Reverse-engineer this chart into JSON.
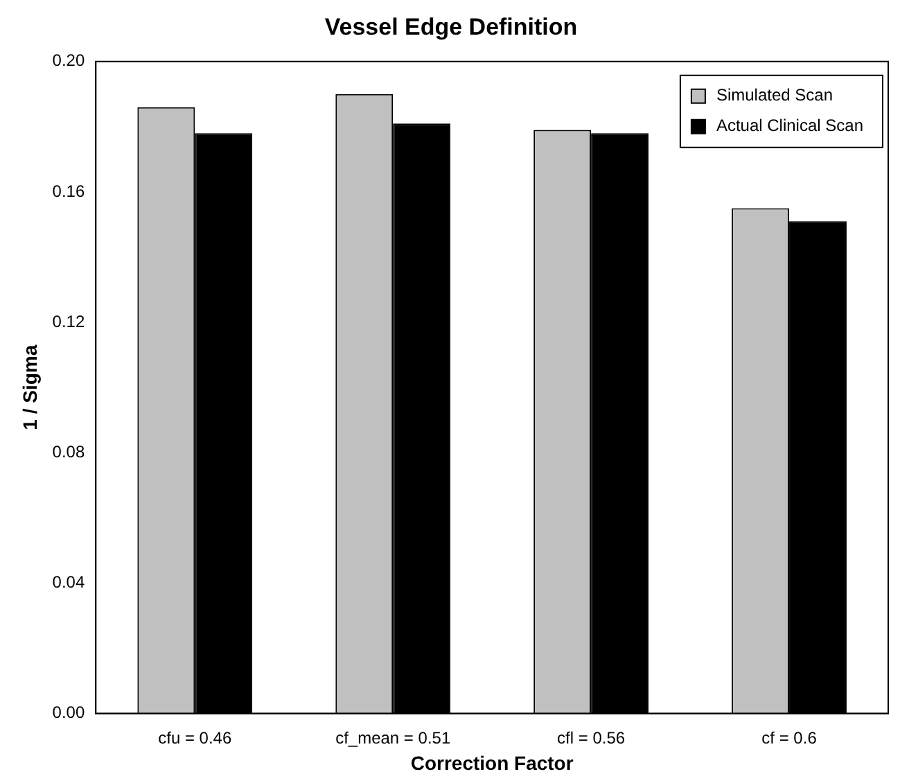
{
  "chart_data": {
    "type": "bar",
    "title": "Vessel Edge Definition",
    "xlabel": "Correction Factor",
    "ylabel": "1 / Sigma",
    "categories": [
      "cfu = 0.46",
      "cf_mean = 0.51",
      "cfl = 0.56",
      "cf = 0.6"
    ],
    "series": [
      {
        "name": "Simulated Scan",
        "color": "#c0c0c0",
        "values": [
          0.186,
          0.19,
          0.179,
          0.155
        ]
      },
      {
        "name": "Actual Clinical Scan",
        "color": "#000000",
        "values": [
          0.178,
          0.181,
          0.178,
          0.151
        ]
      }
    ],
    "ylim": [
      0,
      0.2
    ],
    "yticks": [
      {
        "value": 0,
        "label": "0.00"
      },
      {
        "value": 0.04,
        "label": "0.04"
      },
      {
        "value": 0.08,
        "label": "0.08"
      },
      {
        "value": 0.12,
        "label": "0.12"
      },
      {
        "value": 0.16,
        "label": "0.16"
      },
      {
        "value": 0.2,
        "label": "0.20"
      }
    ],
    "grid": false,
    "legend": "top right"
  }
}
